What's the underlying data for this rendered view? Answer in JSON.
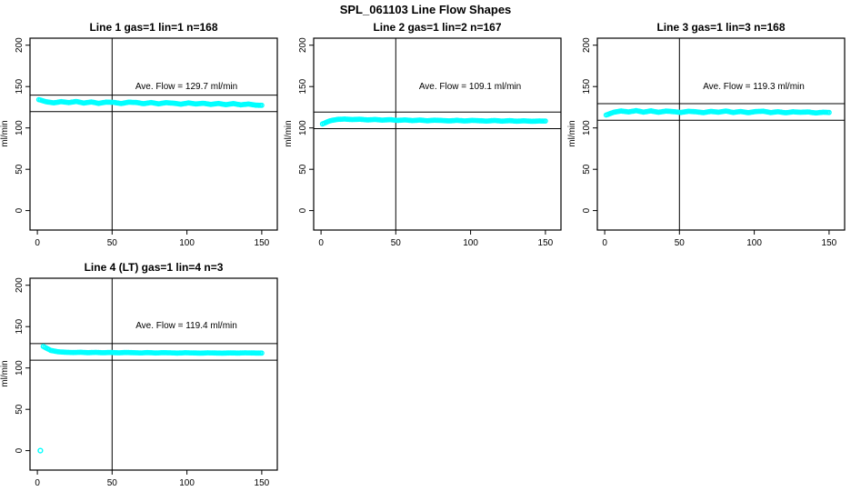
{
  "title": "SPL_061103  Line Flow Shapes",
  "chart_data": [
    {
      "type": "scatter",
      "title": "Line 1 gas=1 lin=1 n=168",
      "ave_flow_text": "Ave. Flow =  129.7  ml/min",
      "ave_flow": 129.7,
      "ref_lines": [
        139.7,
        119.7
      ],
      "vline_x": 50,
      "xlabel": "",
      "ylabel": "ml/min",
      "x_ticks": [
        0,
        50,
        100,
        150
      ],
      "y_ticks": [
        0,
        50,
        100,
        150,
        200
      ],
      "xlim": [
        -4.9,
        160.4
      ],
      "ylim": [
        -23.5,
        208.5
      ],
      "grid": false,
      "point_color": "#00FFFF",
      "band": {
        "x": [
          1,
          6,
          11,
          16,
          21,
          26,
          31,
          36,
          41,
          46,
          51,
          56,
          61,
          66,
          71,
          76,
          81,
          86,
          91,
          96,
          101,
          106,
          111,
          116,
          121,
          126,
          131,
          136,
          141,
          146,
          150
        ],
        "y": [
          134.2,
          131.6,
          130.3,
          131.8,
          130.6,
          132.0,
          130.1,
          131.4,
          129.7,
          131.2,
          130.9,
          129.5,
          131.1,
          130.8,
          129.3,
          130.7,
          129.1,
          130.5,
          129.9,
          128.7,
          130.2,
          129.0,
          129.8,
          128.4,
          129.6,
          128.1,
          129.4,
          127.9,
          128.9,
          127.5,
          127.3
        ]
      },
      "outliers": []
    },
    {
      "type": "scatter",
      "title": "Line 2 gas=1 lin=2 n=167",
      "ave_flow_text": "Ave. Flow =  109.1  ml/min",
      "ave_flow": 109.1,
      "ref_lines": [
        119.1,
        99.1
      ],
      "vline_x": 50,
      "xlabel": "",
      "ylabel": "ml/min",
      "x_ticks": [
        0,
        50,
        100,
        150
      ],
      "y_ticks": [
        0,
        50,
        100,
        150,
        200
      ],
      "xlim": [
        -4.9,
        160.4
      ],
      "ylim": [
        -23.5,
        208.5
      ],
      "grid": false,
      "point_color": "#00FFFF",
      "band": {
        "x": [
          1,
          6,
          11,
          16,
          21,
          26,
          31,
          36,
          41,
          46,
          51,
          56,
          61,
          66,
          71,
          76,
          81,
          86,
          91,
          96,
          101,
          106,
          111,
          116,
          121,
          126,
          131,
          136,
          141,
          146,
          150
        ],
        "y": [
          104.8,
          108.6,
          110.3,
          110.7,
          110.1,
          110.5,
          109.7,
          110.2,
          109.4,
          110.0,
          109.1,
          109.7,
          108.9,
          109.5,
          108.7,
          109.3,
          109.0,
          108.5,
          109.2,
          108.4,
          109.1,
          108.7,
          108.3,
          109.0,
          108.2,
          108.8,
          108.1,
          108.6,
          108.0,
          108.4,
          108.3
        ]
      },
      "outliers": []
    },
    {
      "type": "scatter",
      "title": "Line 3 gas=1 lin=3 n=168",
      "ave_flow_text": "Ave. Flow =  119.3  ml/min",
      "ave_flow": 119.3,
      "ref_lines": [
        129.3,
        109.3
      ],
      "vline_x": 50,
      "xlabel": "",
      "ylabel": "ml/min",
      "x_ticks": [
        0,
        50,
        100,
        150
      ],
      "y_ticks": [
        0,
        50,
        100,
        150,
        200
      ],
      "xlim": [
        -4.9,
        160.4
      ],
      "ylim": [
        -23.5,
        208.5
      ],
      "grid": false,
      "point_color": "#00FFFF",
      "band": {
        "x": [
          1,
          6,
          11,
          16,
          21,
          26,
          31,
          36,
          41,
          46,
          51,
          56,
          61,
          66,
          71,
          76,
          81,
          86,
          91,
          96,
          101,
          106,
          111,
          116,
          121,
          126,
          131,
          136,
          141,
          146,
          150
        ],
        "y": [
          115.6,
          118.9,
          120.5,
          119.3,
          120.9,
          119.1,
          120.6,
          118.9,
          120.3,
          119.7,
          118.7,
          120.1,
          119.5,
          118.5,
          120.0,
          119.0,
          120.4,
          118.7,
          119.9,
          118.4,
          119.8,
          120.2,
          118.6,
          119.6,
          118.3,
          119.5,
          118.9,
          119.3,
          118.1,
          119.0,
          118.7
        ]
      },
      "outliers": []
    },
    {
      "type": "scatter",
      "title": "Line 4 (LT) gas=1 lin=4 n=3",
      "ave_flow_text": "Ave. Flow =  119.4  ml/min",
      "ave_flow": 119.4,
      "ref_lines": [
        129.4,
        109.4
      ],
      "vline_x": 50,
      "xlabel": "",
      "ylabel": "ml/min",
      "x_ticks": [
        0,
        50,
        100,
        150
      ],
      "y_ticks": [
        0,
        50,
        100,
        150,
        200
      ],
      "xlim": [
        -4.9,
        160.4
      ],
      "ylim": [
        -23.5,
        208.5
      ],
      "grid": false,
      "point_color": "#00FFFF",
      "band": {
        "x": [
          4,
          9,
          14,
          19,
          24,
          29,
          34,
          39,
          44,
          49,
          54,
          59,
          64,
          69,
          74,
          79,
          84,
          89,
          94,
          99,
          104,
          109,
          114,
          119,
          124,
          129,
          134,
          139,
          144,
          149,
          150
        ],
        "y": [
          126.0,
          121.2,
          119.6,
          119.0,
          118.7,
          119.0,
          118.5,
          118.9,
          118.4,
          118.8,
          118.3,
          118.7,
          118.5,
          118.2,
          118.6,
          118.1,
          118.5,
          118.3,
          118.0,
          118.4,
          118.2,
          117.9,
          118.3,
          118.1,
          117.9,
          118.2,
          118.0,
          118.3,
          118.1,
          118.0,
          118.0
        ]
      },
      "outliers": [
        [
          2,
          0
        ]
      ]
    }
  ]
}
